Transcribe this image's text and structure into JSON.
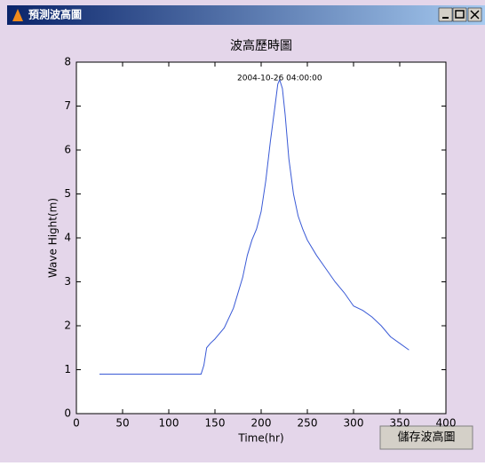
{
  "window": {
    "title": "預測波高圖",
    "button": "儲存波高圖"
  },
  "chart_data": {
    "type": "line",
    "title": "波高歷時圖",
    "x_label": "Time(hr)",
    "y_label": "Wave Hight(m)",
    "annotation": "2004-10-26 04:00:00",
    "x": [
      25,
      135,
      138,
      141,
      145,
      150,
      160,
      170,
      180,
      185,
      190,
      195,
      200,
      205,
      210,
      215,
      218,
      220,
      223,
      226,
      230,
      235,
      240,
      245,
      250,
      260,
      270,
      280,
      290,
      300,
      310,
      320,
      330,
      340,
      350,
      360
    ],
    "values": [
      0.9,
      0.9,
      1.1,
      1.5,
      1.6,
      1.7,
      1.95,
      2.4,
      3.1,
      3.6,
      3.95,
      4.2,
      4.6,
      5.3,
      6.2,
      7.0,
      7.5,
      7.6,
      7.4,
      6.8,
      5.8,
      5.0,
      4.5,
      4.2,
      3.95,
      3.6,
      3.3,
      3.0,
      2.75,
      2.45,
      2.35,
      2.2,
      2.0,
      1.75,
      1.6,
      1.45
    ],
    "color": "#3a5ad6",
    "xlim": [
      0,
      400
    ],
    "xticks": [
      0,
      50,
      100,
      150,
      200,
      250,
      300,
      350,
      400
    ],
    "ylim": [
      0,
      8
    ],
    "yticks": [
      0,
      1,
      2,
      3,
      4,
      5,
      6,
      7,
      8
    ],
    "grid": false
  }
}
